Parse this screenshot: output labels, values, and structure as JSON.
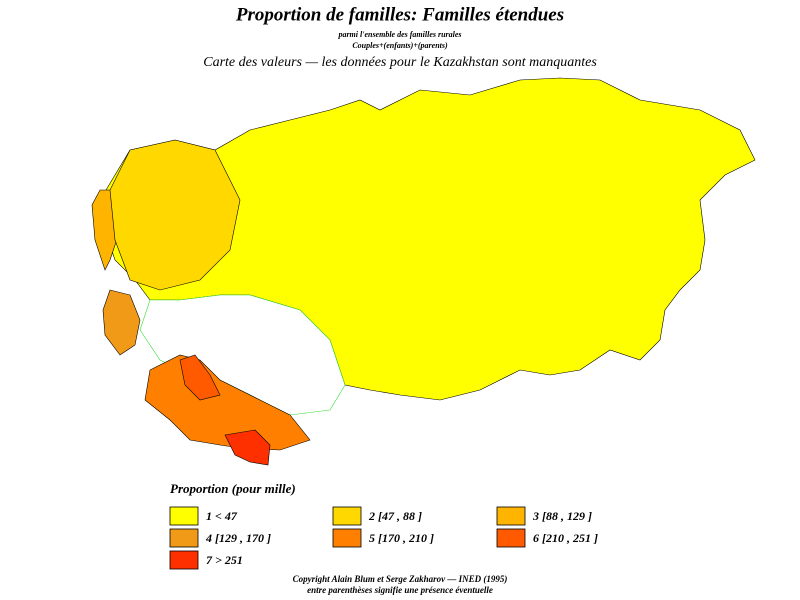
{
  "title": "Proportion de familles: Familles étendues",
  "subtitle": "parmi l'ensemble des familles rurales",
  "subtitle2": "Couples+(enfants)+(parents)",
  "caption": "Carte des valeurs — les données pour le Kazakhstan sont manquantes",
  "legend": {
    "title": "Proportion (pour mille)",
    "items": [
      {
        "label": "1  <  47",
        "color": "#ffff00"
      },
      {
        "label": "2 [47 , 88 ]",
        "color": "#ffd800"
      },
      {
        "label": "3 [88 , 129 ]",
        "color": "#ffb400"
      },
      {
        "label": "4 [129 , 170 ]",
        "color": "#f09a18"
      },
      {
        "label": "5 [170 , 210 ]",
        "color": "#ff8000"
      },
      {
        "label": "6 [210 , 251 ]",
        "color": "#ff5a00"
      },
      {
        "label": "7  >  251",
        "color": "#ff3000"
      }
    ]
  },
  "footer": [
    "Copyright Alain Blum et Serge Zakharov — INED (1995)",
    "entre parenthèses signifie une présence éventuelle"
  ]
}
